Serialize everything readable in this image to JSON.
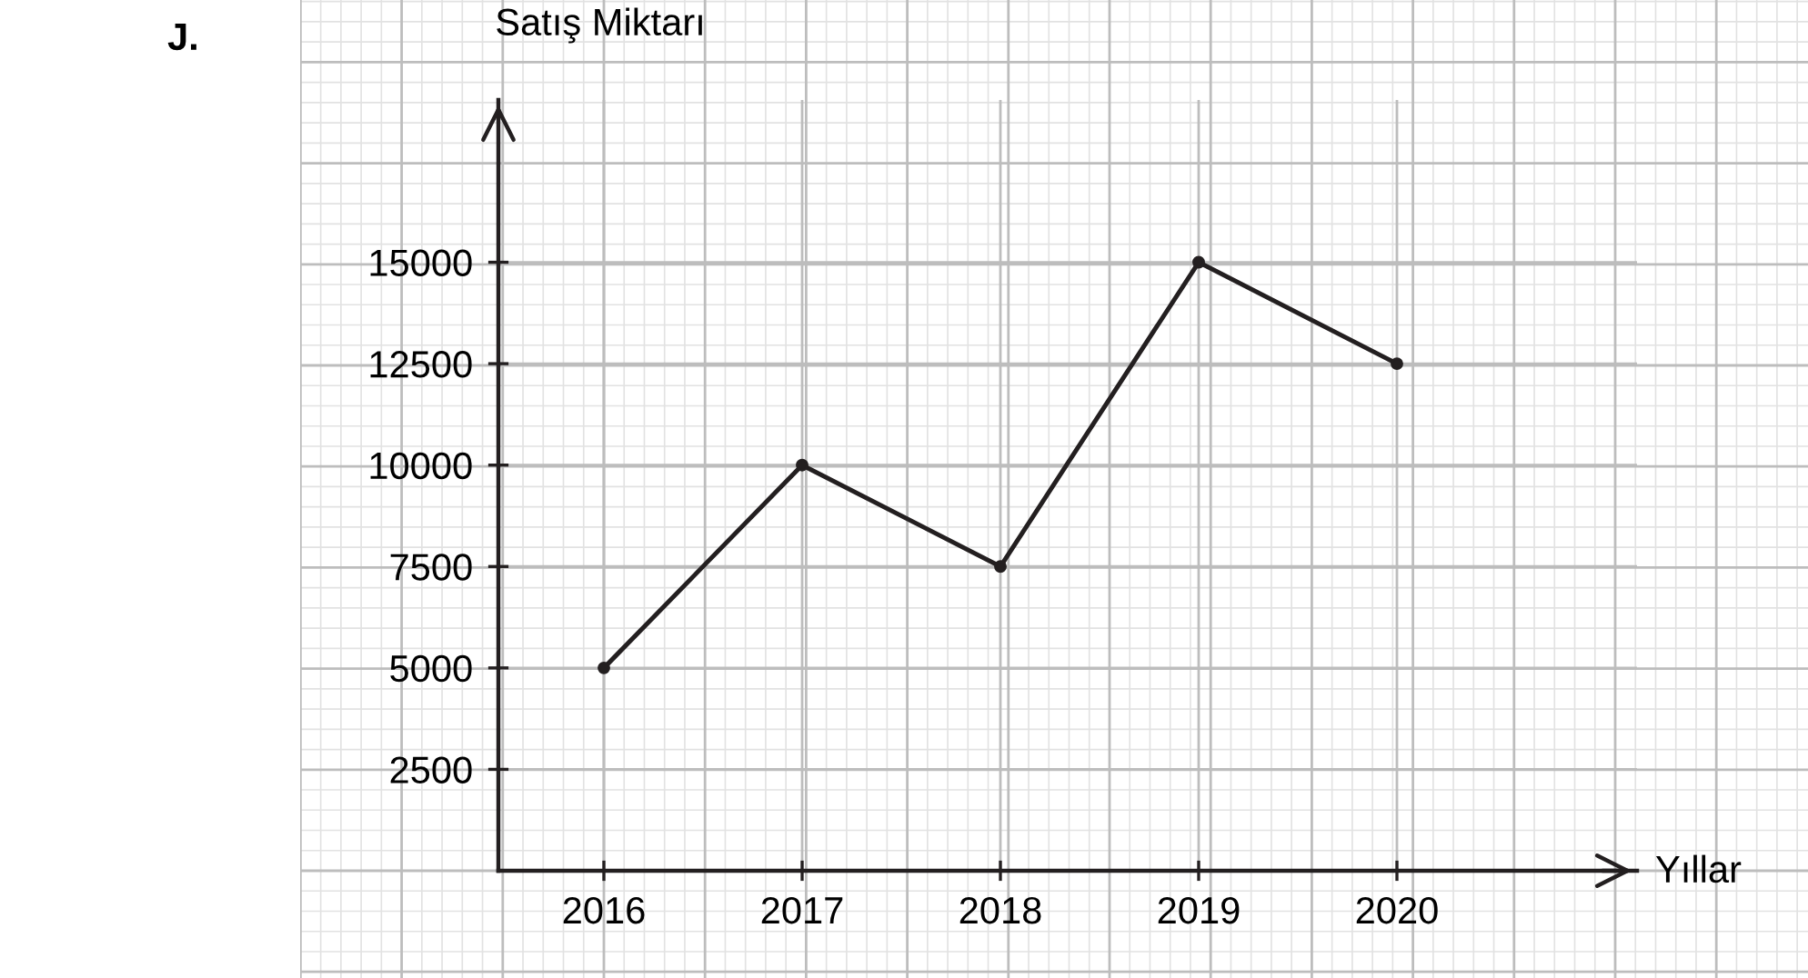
{
  "chart_data": {
    "type": "line",
    "ylabel": "Satış Miktarı",
    "xlabel": "Yıllar",
    "annotations": [
      "J."
    ],
    "categories": [
      "2016",
      "2017",
      "2018",
      "2019",
      "2020"
    ],
    "series": [
      {
        "color": "#231f20",
        "values": [
          5000,
          10000,
          7500,
          15000,
          12500
        ]
      }
    ],
    "ylim": [
      0,
      19000
    ],
    "yticks": [
      2500,
      5000,
      7500,
      10000,
      12500,
      15000
    ],
    "grid": true,
    "marker": "circle",
    "line_style": "solid"
  }
}
